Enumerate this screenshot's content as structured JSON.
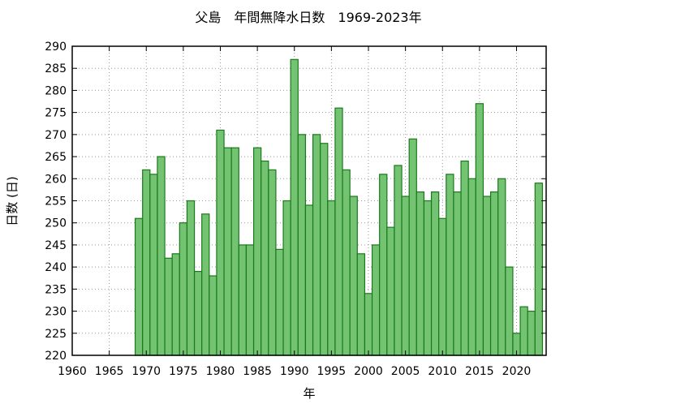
{
  "chart_data": {
    "type": "bar",
    "title": "父島　年間無降水日数　1969-2023年",
    "xlabel": "年",
    "ylabel": "日数 (日)",
    "xlim": [
      1960,
      2024
    ],
    "ylim": [
      220,
      290
    ],
    "xticks": [
      1960,
      1965,
      1970,
      1975,
      1980,
      1985,
      1990,
      1995,
      2000,
      2005,
      2010,
      2015,
      2020
    ],
    "yticks": [
      220,
      225,
      230,
      235,
      240,
      245,
      250,
      255,
      260,
      265,
      270,
      275,
      280,
      285,
      290
    ],
    "grid": true,
    "colors": {
      "bar_fill": "#73c373",
      "bar_stroke": "#1a7a1a",
      "grid": "#999999"
    },
    "x": [
      1969,
      1970,
      1971,
      1972,
      1973,
      1974,
      1975,
      1976,
      1977,
      1978,
      1979,
      1980,
      1981,
      1982,
      1983,
      1984,
      1985,
      1986,
      1987,
      1988,
      1989,
      1990,
      1991,
      1992,
      1993,
      1994,
      1995,
      1996,
      1997,
      1998,
      1999,
      2000,
      2001,
      2002,
      2003,
      2004,
      2005,
      2006,
      2007,
      2008,
      2009,
      2010,
      2011,
      2012,
      2013,
      2014,
      2015,
      2016,
      2017,
      2018,
      2019,
      2020,
      2021,
      2022,
      2023
    ],
    "values": [
      251,
      262,
      261,
      265,
      242,
      243,
      250,
      255,
      239,
      252,
      238,
      271,
      267,
      267,
      245,
      245,
      267,
      264,
      262,
      244,
      255,
      287,
      270,
      254,
      270,
      268,
      255,
      276,
      262,
      256,
      243,
      234,
      245,
      261,
      249,
      263,
      256,
      269,
      257,
      255,
      257,
      251,
      261,
      257,
      264,
      260,
      277,
      256,
      257,
      260,
      240,
      225,
      231,
      230,
      259
    ]
  }
}
